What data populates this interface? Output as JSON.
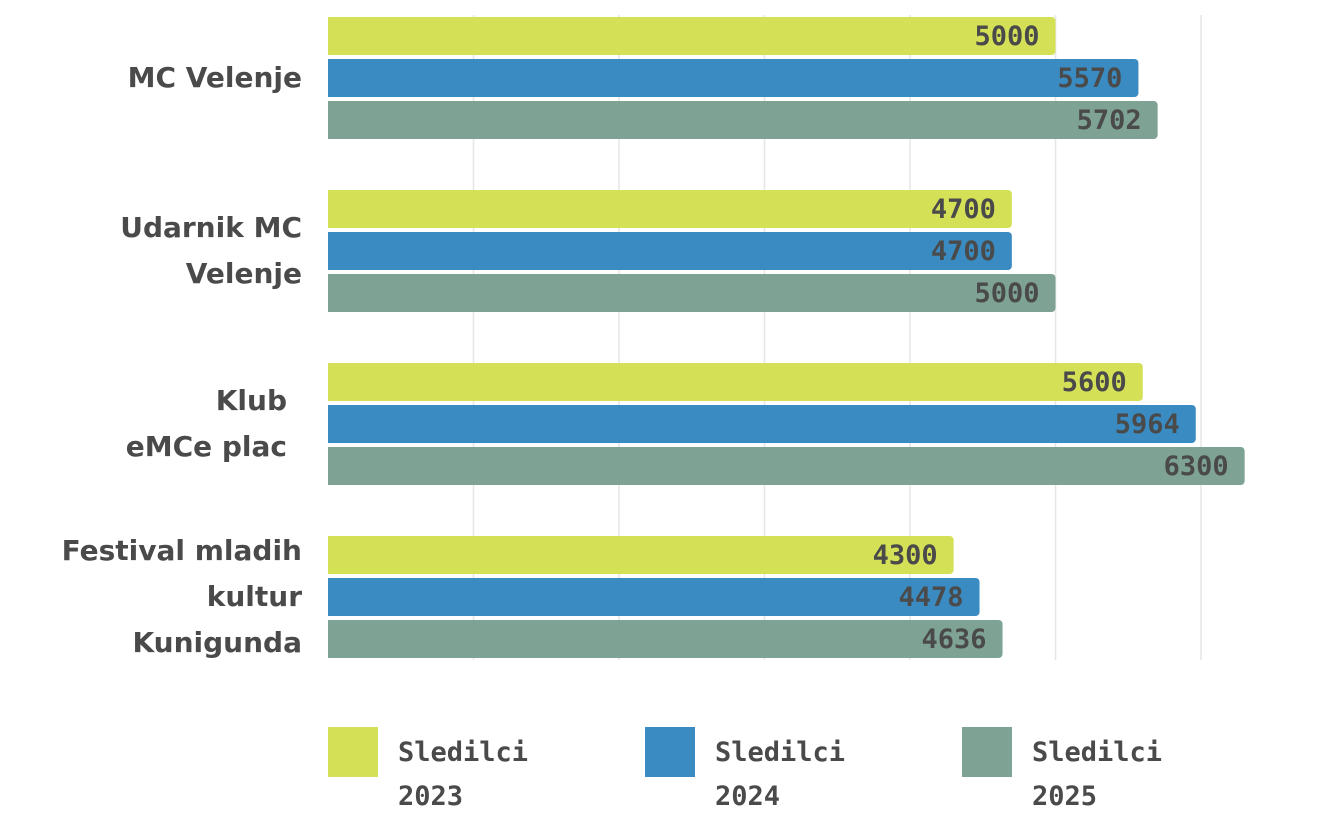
{
  "chart_data": {
    "type": "bar",
    "orientation": "horizontal",
    "categories": [
      [
        "MC Velenje"
      ],
      [
        "Udarnik MC",
        "Velenje"
      ],
      [
        "Klub",
        "eMCe plac"
      ],
      [
        "Festival mladih",
        "kultur",
        "Kunigunda"
      ]
    ],
    "series": [
      {
        "name": "Sledilci 2023",
        "legend_lines": [
          "Sledilci",
          "2023"
        ],
        "color": "#d4e157",
        "values": [
          5000,
          4700,
          5600,
          4300
        ]
      },
      {
        "name": "Sledilci 2024",
        "legend_lines": [
          "Sledilci",
          "2024"
        ],
        "color": "#3a8bc2",
        "values": [
          5570,
          4700,
          5964,
          4478
        ]
      },
      {
        "name": "Sledilci 2025",
        "legend_lines": [
          "Sledilci",
          "2025"
        ],
        "color": "#7ea394",
        "values": [
          5702,
          5000,
          6300,
          4636
        ]
      }
    ],
    "xlim": [
      0,
      7000
    ],
    "grid": true,
    "legend_position": "bottom",
    "value_label_color": "#4a4a4a"
  }
}
